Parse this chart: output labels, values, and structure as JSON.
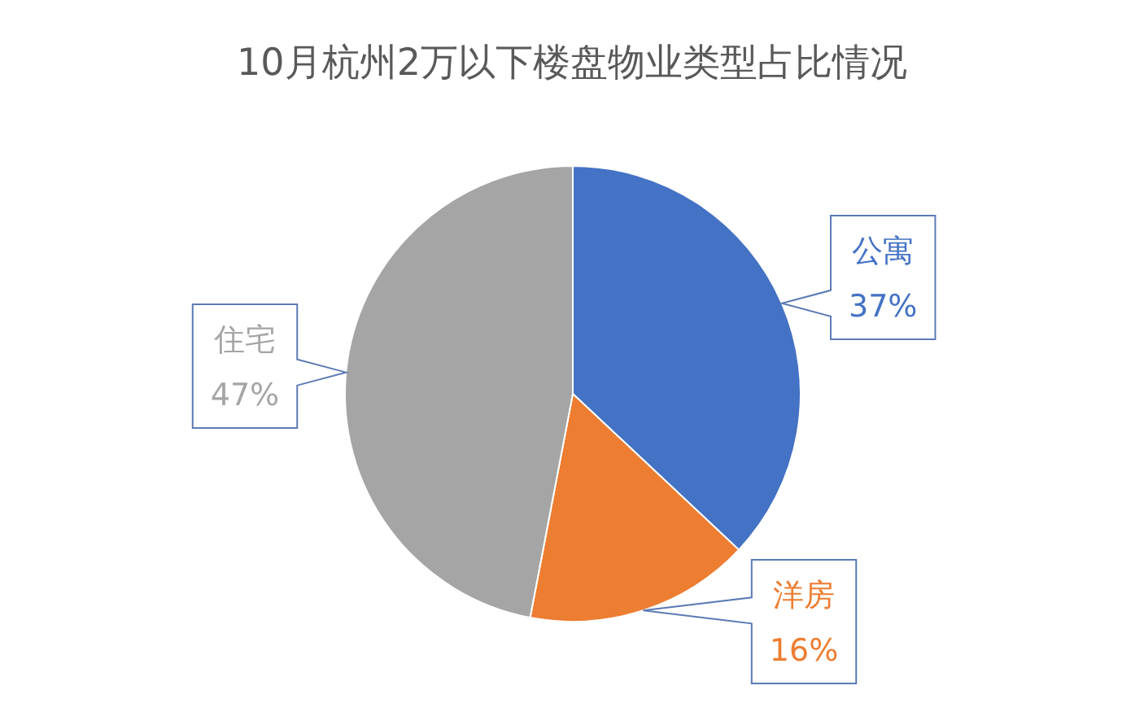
{
  "chart_data": {
    "type": "pie",
    "title": "10月杭州2万以下楼盘物业类型占比情况",
    "categories": [
      "公寓",
      "洋房",
      "住宅"
    ],
    "values": [
      37,
      16,
      47
    ],
    "colors": [
      "#4472c4",
      "#ed7d31",
      "#a5a5a5"
    ],
    "value_labels": [
      "37%",
      "16%",
      "47%"
    ]
  }
}
